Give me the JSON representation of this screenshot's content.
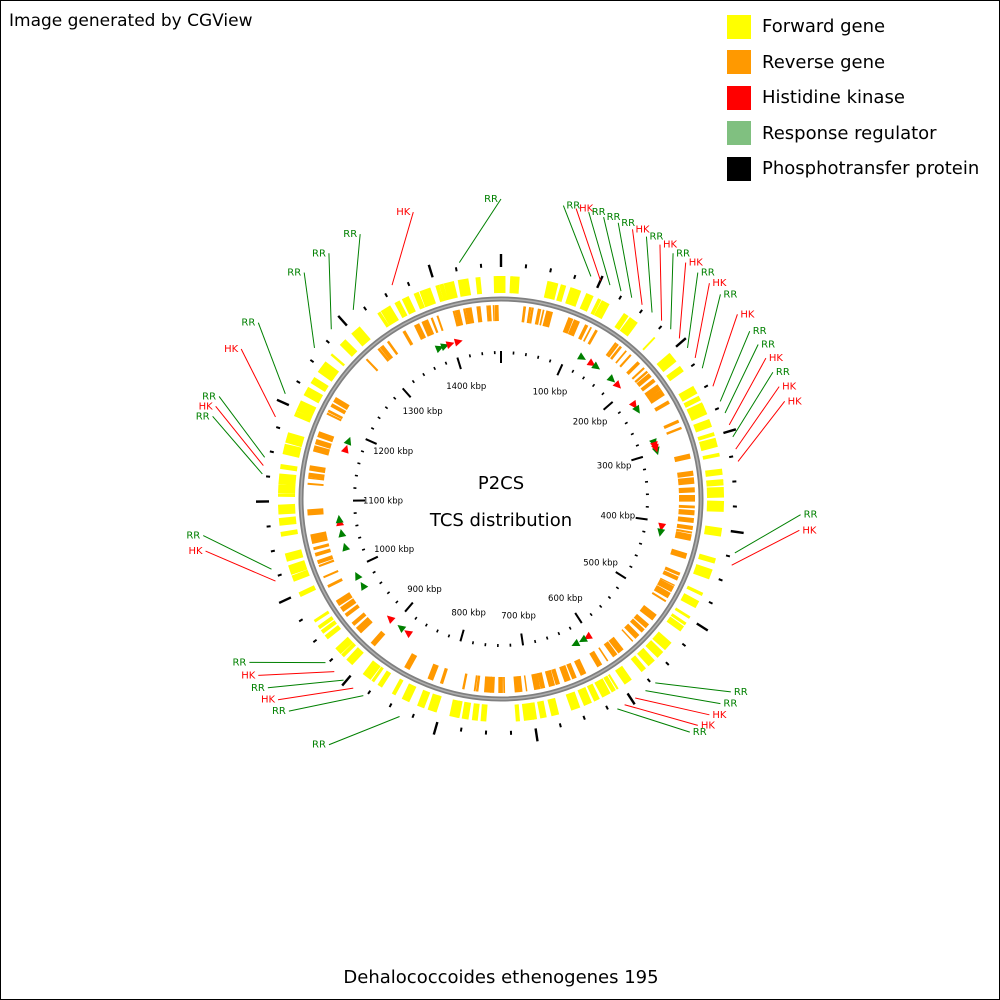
{
  "credit": "Image generated by CGView",
  "legend": [
    {
      "label": "Forward gene",
      "color": "#ffff00"
    },
    {
      "label": "Reverse gene",
      "color": "#ff9900"
    },
    {
      "label": "Histidine kinase",
      "color": "#ff0000"
    },
    {
      "label": "Response regulator",
      "color": "#80c080"
    },
    {
      "label": "Phosphotransfer protein",
      "color": "#000000"
    }
  ],
  "center_title": "P2CS",
  "center_subtitle": "TCS distribution",
  "organism": "Dehalococcoides ethenogenes 195",
  "colors": {
    "forward_gene": "#ffff00",
    "reverse_gene": "#ff9900",
    "hk": "#ff0000",
    "rr": "#008000",
    "backbone": "#808080"
  },
  "genome_kbp": 1470,
  "kbp_labels": [
    {
      "kbp": 100,
      "text": "100 kbp"
    },
    {
      "kbp": 200,
      "text": "200 kbp"
    },
    {
      "kbp": 300,
      "text": "300 kbp"
    },
    {
      "kbp": 400,
      "text": "400 kbp"
    },
    {
      "kbp": 500,
      "text": "500 kbp"
    },
    {
      "kbp": 600,
      "text": "600 kbp"
    },
    {
      "kbp": 700,
      "text": "700 kbp"
    },
    {
      "kbp": 800,
      "text": "800 kbp"
    },
    {
      "kbp": 900,
      "text": "900 kbp"
    },
    {
      "kbp": 1000,
      "text": "1000 kbp"
    },
    {
      "kbp": 1100,
      "text": "1100 kbp"
    },
    {
      "kbp": 1200,
      "text": "1200 kbp"
    },
    {
      "kbp": 1300,
      "text": "1300 kbp"
    },
    {
      "kbp": 1400,
      "text": "1400 kbp"
    }
  ],
  "tcs_labels": [
    {
      "text": "RR",
      "type": "RR"
    },
    {
      "text": "HK",
      "type": "HK"
    },
    {
      "text": "RR",
      "type": "RR"
    },
    {
      "text": "RR",
      "type": "RR"
    },
    {
      "text": "RR",
      "type": "RR"
    },
    {
      "text": "HK",
      "type": "HK"
    },
    {
      "text": "RR",
      "type": "RR"
    },
    {
      "text": "HK",
      "type": "HK"
    },
    {
      "text": "RR",
      "type": "RR"
    },
    {
      "text": "HK",
      "type": "HK"
    },
    {
      "text": "RR",
      "type": "RR"
    },
    {
      "text": "HK",
      "type": "HK"
    },
    {
      "text": "RR",
      "type": "RR"
    },
    {
      "text": "HK",
      "type": "HK"
    },
    {
      "text": "RR",
      "type": "RR"
    },
    {
      "text": "RR",
      "type": "RR"
    },
    {
      "text": "HK",
      "type": "HK"
    },
    {
      "text": "RR",
      "type": "RR"
    },
    {
      "text": "HK",
      "type": "HK"
    },
    {
      "text": "HK",
      "type": "HK"
    },
    {
      "text": "RR",
      "type": "RR"
    },
    {
      "text": "HK",
      "type": "HK"
    },
    {
      "text": "RR",
      "type": "RR"
    },
    {
      "text": "RR",
      "type": "RR"
    },
    {
      "text": "HK",
      "type": "HK"
    },
    {
      "text": "HK",
      "type": "HK"
    },
    {
      "text": "RR",
      "type": "RR"
    },
    {
      "text": "RR",
      "type": "RR"
    },
    {
      "text": "RR",
      "type": "RR"
    },
    {
      "text": "HK",
      "type": "HK"
    },
    {
      "text": "RR",
      "type": "RR"
    },
    {
      "text": "HK",
      "type": "HK"
    },
    {
      "text": "RR",
      "type": "RR"
    },
    {
      "text": "HK",
      "type": "HK"
    },
    {
      "text": "RR",
      "type": "RR"
    },
    {
      "text": "RR",
      "type": "RR"
    },
    {
      "text": "HK",
      "type": "HK"
    },
    {
      "text": "RR",
      "type": "RR"
    },
    {
      "text": "HK",
      "type": "HK"
    },
    {
      "text": "RR",
      "type": "RR"
    },
    {
      "text": "RR",
      "type": "RR"
    },
    {
      "text": "RR",
      "type": "RR"
    },
    {
      "text": "RR",
      "type": "RR"
    },
    {
      "text": "HK",
      "type": "HK"
    },
    {
      "text": "RR",
      "type": "RR"
    }
  ]
}
